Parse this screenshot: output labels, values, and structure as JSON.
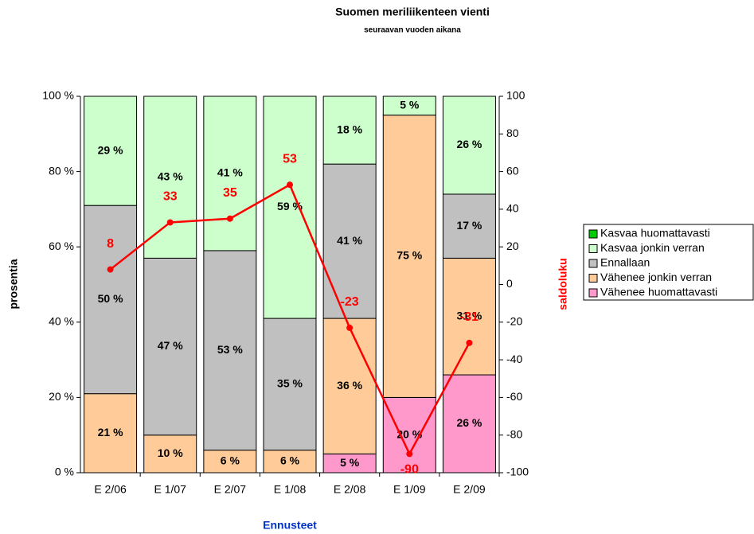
{
  "chart_data": {
    "type": "bar",
    "stacked": true,
    "title": "Suomen meriliikenteen vienti",
    "subtitle": "seuraavan vuoden aikana",
    "x_label": "Ennusteet",
    "y_label": "prosentia",
    "y2_label": "saldoluku",
    "categories": [
      "E 2/06",
      "E 1/07",
      "E 2/07",
      "E 1/08",
      "E 2/08",
      "E 1/09",
      "E 2/09"
    ],
    "series": [
      {
        "name": "Vähenee huomattavasti",
        "color": "#ff99cc",
        "values": [
          0,
          0,
          0,
          0,
          5,
          20,
          26
        ],
        "value_labels": [
          null,
          null,
          null,
          null,
          "5 %",
          "20 %",
          "26 %"
        ]
      },
      {
        "name": "Vähenee jonkin verran",
        "color": "#ffcc99",
        "values": [
          21,
          10,
          6,
          6,
          36,
          75,
          31
        ],
        "value_labels": [
          "21 %",
          "10 %",
          "6 %",
          "6 %",
          "36 %",
          "75 %",
          "31 %"
        ]
      },
      {
        "name": "Ennallaan",
        "color": "#c0c0c0",
        "values": [
          50,
          47,
          53,
          35,
          41,
          0,
          17
        ],
        "value_labels": [
          "50 %",
          "47 %",
          "53 %",
          "35 %",
          "41 %",
          null,
          "17 %"
        ]
      },
      {
        "name": "Kasvaa jonkin verran",
        "color": "#ccffcc",
        "values": [
          29,
          43,
          41,
          59,
          18,
          5,
          26
        ],
        "value_labels": [
          "29 %",
          "43 %",
          "41 %",
          "59 %",
          "18 %",
          "5 %",
          "26 %"
        ]
      },
      {
        "name": "Kasvaa huomattavasti",
        "color": "#00cc00",
        "values": [
          0,
          0,
          0,
          0,
          0,
          0,
          0
        ],
        "value_labels": [
          null,
          null,
          null,
          null,
          null,
          null,
          null
        ]
      }
    ],
    "line_series": {
      "axis": "y2",
      "color": "#ff0000",
      "values": [
        8,
        33,
        35,
        53,
        -23,
        -90,
        -31
      ]
    },
    "ylim": [
      0,
      100
    ],
    "yticks": [
      {
        "value": 0,
        "label": "0 %"
      },
      {
        "value": 20,
        "label": "20 %"
      },
      {
        "value": 40,
        "label": "40 %"
      },
      {
        "value": 60,
        "label": "60 %"
      },
      {
        "value": 80,
        "label": "80 %"
      },
      {
        "value": 100,
        "label": "100 %"
      }
    ],
    "y2lim": [
      -100,
      100
    ],
    "y2ticks": [
      -100,
      -80,
      -60,
      -40,
      -20,
      0,
      20,
      40,
      60,
      80,
      100
    ],
    "legend": "right"
  }
}
